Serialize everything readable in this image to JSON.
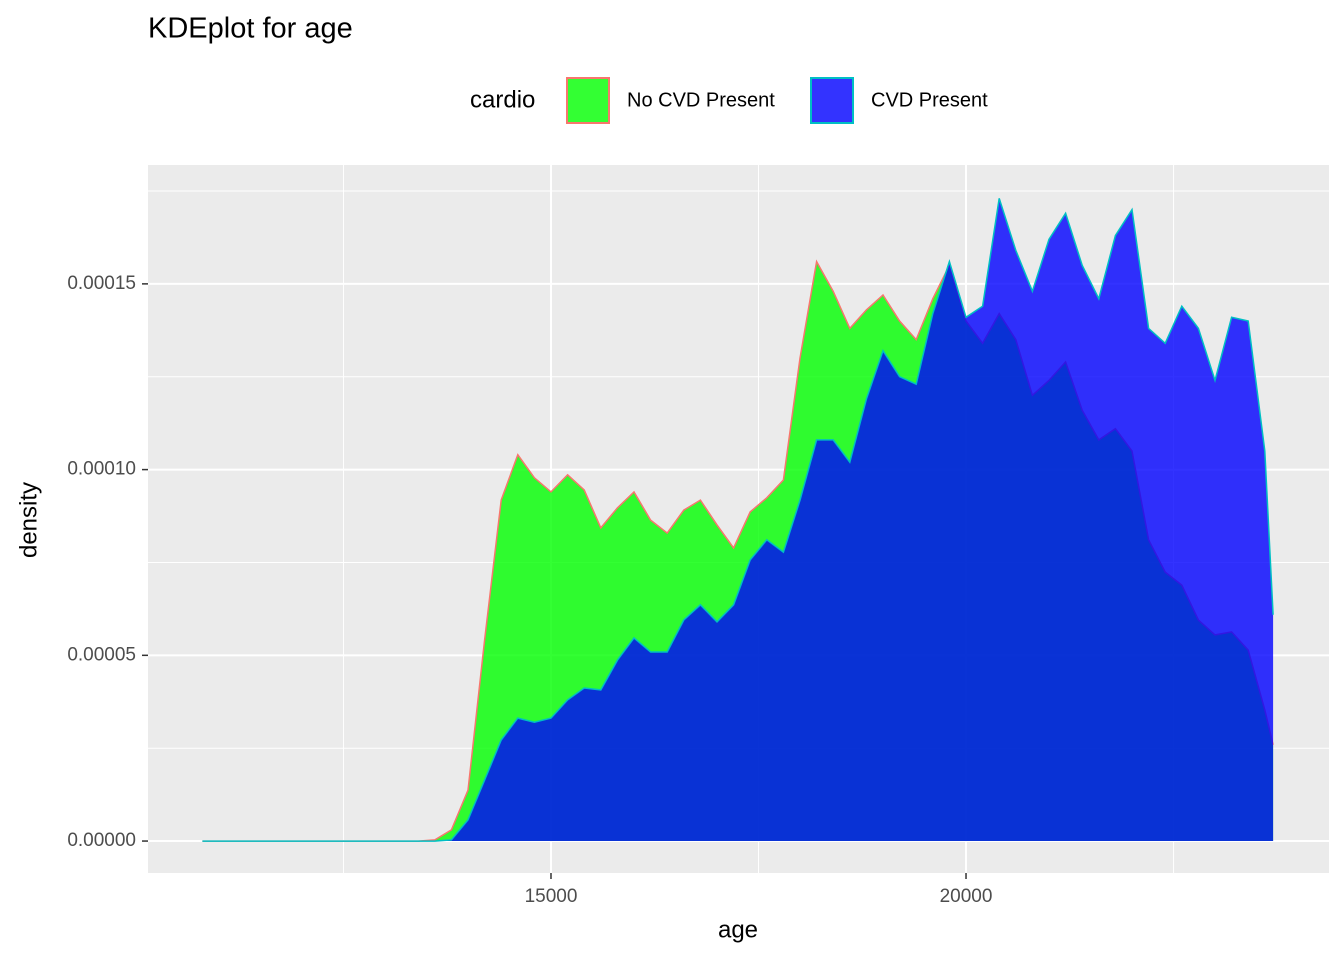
{
  "chart_data": {
    "type": "density",
    "title": "KDEplot for age",
    "x_label": "age",
    "y_label": "density",
    "legend_title": "cardio",
    "legend_position": "top",
    "x": [
      10800,
      13400,
      13600,
      13800,
      14000,
      14200,
      14400,
      14600,
      14800,
      15000,
      15200,
      15400,
      15600,
      15800,
      16000,
      16200,
      16400,
      16600,
      16800,
      17000,
      17200,
      17400,
      17600,
      17800,
      18000,
      18200,
      18400,
      18600,
      18800,
      19000,
      19200,
      19400,
      19600,
      19800,
      20000,
      20200,
      20400,
      20600,
      20800,
      21000,
      21200,
      21400,
      21600,
      21800,
      22000,
      22200,
      22400,
      22600,
      22800,
      23000,
      23200,
      23400,
      23600,
      23700
    ],
    "series": [
      {
        "name": "No CVD Present",
        "color": "#00ff00",
        "line_color": "#f8766d",
        "values": [
          0,
          0,
          3e-07,
          3e-06,
          1.37e-05,
          5.41e-05,
          9.18e-05,
          0.000104,
          9.78e-05,
          9.4e-05,
          9.86e-05,
          9.45e-05,
          8.43e-05,
          8.97e-05,
          9.4e-05,
          8.64e-05,
          8.29e-05,
          8.91e-05,
          9.18e-05,
          8.51e-05,
          7.89e-05,
          8.86e-05,
          9.24e-05,
          9.72e-05,
          0.00013,
          0.000156,
          0.000148,
          0.000138,
          0.000143,
          0.000147,
          0.00014,
          0.000135,
          0.000146,
          0.000155,
          0.00014,
          0.000134,
          0.000142,
          0.000135,
          0.00012,
          0.000124,
          0.000129,
          0.000116,
          0.000108,
          0.000111,
          0.000105,
          8.11e-05,
          7.24e-05,
          6.89e-05,
          5.95e-05,
          5.55e-05,
          5.63e-05,
          5.14e-05,
          3.53e-05,
          2.59e-05
        ]
      },
      {
        "name": "CVD Present",
        "color": "#0000ff",
        "line_color": "#00bfc4",
        "values": [
          0,
          0,
          0,
          3e-07,
          5.7e-06,
          1.64e-05,
          2.72e-05,
          3.31e-05,
          3.2e-05,
          3.31e-05,
          3.8e-05,
          4.12e-05,
          4.07e-05,
          4.87e-05,
          5.47e-05,
          5.09e-05,
          5.09e-05,
          5.95e-05,
          6.36e-05,
          5.9e-05,
          6.36e-05,
          7.57e-05,
          8.11e-05,
          7.78e-05,
          9.18e-05,
          0.000108,
          0.000108,
          0.000102,
          0.000119,
          0.000132,
          0.000125,
          0.000123,
          0.000142,
          0.000156,
          0.000141,
          0.000144,
          0.000173,
          0.000159,
          0.000148,
          0.000162,
          0.000169,
          0.000155,
          0.000146,
          0.000163,
          0.00017,
          0.000138,
          0.000134,
          0.000144,
          0.000138,
          0.000124,
          0.000141,
          0.00014,
          0.000105,
          6.09e-05
        ]
      }
    ],
    "fill_opacity": 0.8,
    "xlim": [
      10145,
      24373
    ],
    "xticks": [
      15000,
      20000
    ],
    "ylim": [
      -8.6e-06,
      0.000182
    ],
    "yticks": [
      {
        "value": 0,
        "label": "0.00000"
      },
      {
        "value": 5e-05,
        "label": "0.00005"
      },
      {
        "value": 0.0001,
        "label": "0.00010"
      },
      {
        "value": 0.00015,
        "label": "0.00015"
      }
    ],
    "grid": true
  }
}
